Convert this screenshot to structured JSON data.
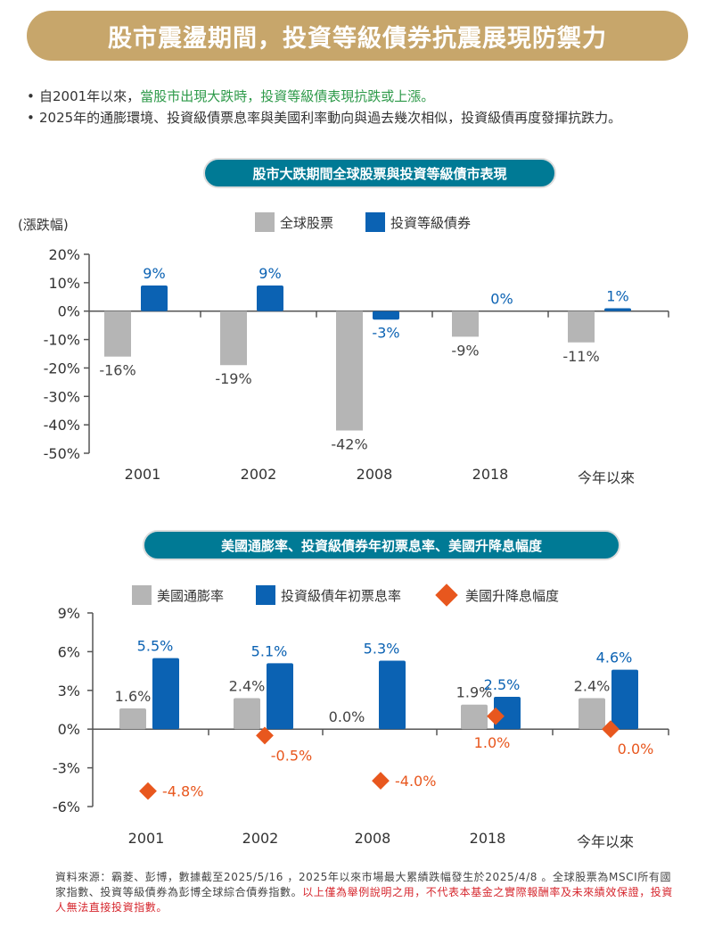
{
  "banner": {
    "title": "股市震盪期間，投資等級債券抗震展現防禦力"
  },
  "bullets": {
    "b1_prefix": "自2001年以來，",
    "b1_highlight": "當股市出現大跌時，投資等級債表現抗跌或上漲。",
    "b2": "2025年的通膨環境、投資級債票息率與美國利率動向與過去幾次相似，投資級債再度發揮抗跌力。"
  },
  "colors": {
    "gray": "#b5b5b5",
    "blue": "#0b62b3",
    "orange": "#e8571e",
    "teal": "#007a95",
    "gold": "#c7a66b"
  },
  "chart_data": [
    {
      "type": "bar",
      "title": "股市大跌期間全球股票與投資等級債市表現",
      "ylabel": "(漲跌幅)",
      "ylim": [
        -50,
        20
      ],
      "yticks": [
        "20%",
        "10%",
        "0%",
        "-10%",
        "-20%",
        "-30%",
        "-40%",
        "-50%"
      ],
      "categories": [
        "2001",
        "2002",
        "2008",
        "2018",
        "今年以來"
      ],
      "series": [
        {
          "name": "全球股票",
          "values": [
            -16,
            -19,
            -42,
            -9,
            -11
          ],
          "labels": [
            "-16%",
            "-19%",
            "-42%",
            "-9%",
            "-11%"
          ]
        },
        {
          "name": "投資等級債券",
          "values": [
            9,
            9,
            -3,
            0,
            1
          ],
          "labels": [
            "9%",
            "9%",
            "-3%",
            "0%",
            "1%"
          ]
        }
      ]
    },
    {
      "type": "bar",
      "title": "美國通膨率、投資級債券年初票息率、美國升降息幅度",
      "ylim": [
        -6,
        9
      ],
      "yticks": [
        "9%",
        "6%",
        "3%",
        "0%",
        "-3%",
        "-6%"
      ],
      "categories": [
        "2001",
        "2002",
        "2008",
        "2018",
        "今年以來"
      ],
      "series": [
        {
          "name": "美國通膨率",
          "values": [
            1.6,
            2.4,
            0.0,
            1.9,
            2.4
          ],
          "labels": [
            "1.6%",
            "2.4%",
            "0.0%",
            "1.9%",
            "2.4%"
          ]
        },
        {
          "name": "投資級債年初票息率",
          "values": [
            5.5,
            5.1,
            5.3,
            2.5,
            4.6
          ],
          "labels": [
            "5.5%",
            "5.1%",
            "5.3%",
            "2.5%",
            "4.6%"
          ]
        },
        {
          "name": "美國升降息幅度",
          "values": [
            -4.8,
            -0.5,
            -4.0,
            1.0,
            0.0
          ],
          "labels": [
            "-4.8%",
            "-0.5%",
            "-4.0%",
            "1.0%",
            "0.0%"
          ]
        }
      ]
    }
  ],
  "footer": {
    "source": "資料來源：霸菱、彭博，數據截至2025/5/16 ，2025年以來市場最大累績跌幅發生於2025/4/8 。全球股票為MSCI所有國家指數、投資等級債券為彭博全球綜合債券指數。",
    "disclaimer": "以上僅為舉例說明之用，不代表本基金之實際報酬率及未來績效保證，投資人無法直接投資指數。"
  }
}
